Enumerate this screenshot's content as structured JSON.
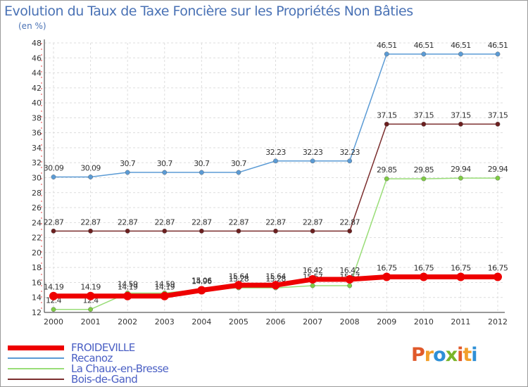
{
  "header": {
    "title": "Evolution du Taux de Taxe Foncière sur les Propriétés Non Bâties",
    "subtitle": "(en %)"
  },
  "logo": {
    "letters": [
      "P",
      "r",
      "o",
      "x",
      "i",
      "t",
      "i"
    ],
    "colors": [
      "#e0592a",
      "#f29f2b",
      "#2e8fd6",
      "#79b52a",
      "#e0592a",
      "#f29f2b",
      "#2e8fd6"
    ]
  },
  "chart_data": {
    "type": "line",
    "title": "Evolution du Taux de Taxe Foncière sur les Propriétés Non Bâties",
    "ylabel": "(en %)",
    "xlabel": "",
    "ylim": [
      12,
      48
    ],
    "yticks": [
      12,
      14,
      16,
      18,
      20,
      22,
      24,
      26,
      28,
      30,
      32,
      34,
      36,
      38,
      40,
      42,
      44,
      46,
      48
    ],
    "grid": true,
    "legend": "bottom-left",
    "categories": [
      "2000",
      "2001",
      "2002",
      "2003",
      "2004",
      "2005",
      "2006",
      "2007",
      "2008",
      "2009",
      "2010",
      "2011",
      "2012"
    ],
    "series": [
      {
        "name": "Recanoz",
        "color": "#5b9bd5",
        "markerFill": "#5b9bd5",
        "width": 1.5,
        "values": [
          30.09,
          30.09,
          30.7,
          30.7,
          30.7,
          30.7,
          32.23,
          32.23,
          32.23,
          46.51,
          46.51,
          46.51,
          46.51
        ],
        "labels": [
          "30.09",
          "30.09",
          "30.7",
          "30.7",
          "30.7",
          "30.7",
          "32.23",
          "32.23",
          "32.23",
          "46.51",
          "46.51",
          "46.51",
          "46.51"
        ]
      },
      {
        "name": "Bois-de-Gand",
        "color": "#7b2e2e",
        "markerFill": "#6b1f1f",
        "width": 1.5,
        "values": [
          22.87,
          22.87,
          22.87,
          22.87,
          22.87,
          22.87,
          22.87,
          22.87,
          22.87,
          37.15,
          37.15,
          37.15,
          37.15
        ],
        "labels": [
          "22.87",
          "22.87",
          "22.87",
          "22.87",
          "22.87",
          "22.87",
          "22.87",
          "22.87",
          "22.87",
          "37.15",
          "37.15",
          "37.15",
          "37.15"
        ]
      },
      {
        "name": "La Chaux-en-Bresse",
        "color": "#99dd77",
        "markerFill": "#7fcc44",
        "width": 1.5,
        "values": [
          12.4,
          12.4,
          14.59,
          14.59,
          15.06,
          15.28,
          15.28,
          15.57,
          15.57,
          29.85,
          29.85,
          29.94,
          29.94
        ],
        "labels": [
          "12.4",
          "12.4",
          "14.59",
          "14.59",
          "15.06",
          "15.28",
          "15.28",
          "15.57",
          "15.57",
          "29.85",
          "29.85",
          "29.94",
          "29.94"
        ]
      },
      {
        "name": "FROIDEVILLE",
        "color": "#ee0000",
        "markerFill": "#ee0000",
        "width": 7,
        "values": [
          14.19,
          14.19,
          14.19,
          14.19,
          14.96,
          15.64,
          15.64,
          16.42,
          16.42,
          16.75,
          16.75,
          16.75,
          16.75
        ],
        "labels": [
          "14.19",
          "14.19",
          "14.19",
          "14.19",
          "14.96",
          "15.64",
          "15.64",
          "16.42",
          "16.42",
          "16.75",
          "16.75",
          "16.75",
          "16.75"
        ]
      }
    ],
    "legend_order": [
      "FROIDEVILLE",
      "Recanoz",
      "La Chaux-en-Bresse",
      "Bois-de-Gand"
    ]
  }
}
